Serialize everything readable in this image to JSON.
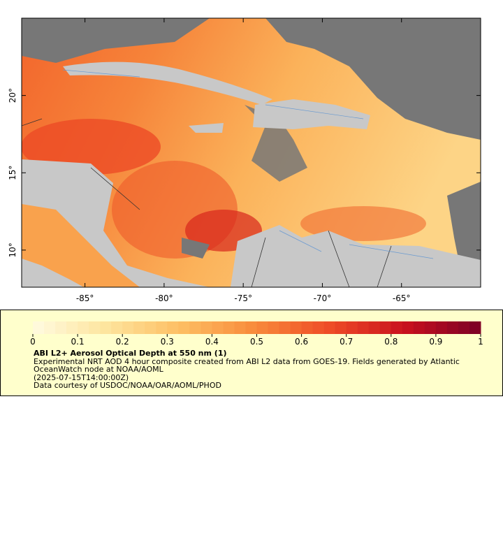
{
  "chart_data": {
    "type": "map",
    "xlim": [
      -89,
      -60
    ],
    "ylim": [
      7.6,
      25
    ],
    "xticks": [
      {
        "value": -85,
        "label": "-85°"
      },
      {
        "value": -80,
        "label": "-80°"
      },
      {
        "value": -75,
        "label": "-75°"
      },
      {
        "value": -70,
        "label": "-70°"
      },
      {
        "value": -65,
        "label": "-65°"
      }
    ],
    "yticks": [
      {
        "value": 10,
        "label": "10°"
      },
      {
        "value": 15,
        "label": "15°"
      },
      {
        "value": 20,
        "label": "20°"
      }
    ],
    "colorbar": {
      "clim": [
        0,
        1
      ],
      "ticks": [
        0,
        0.1,
        0.2,
        0.3,
        0.4,
        0.5,
        0.6,
        0.7,
        0.8,
        0.9,
        1
      ],
      "colors": [
        "#fffbe0",
        "#fde49c",
        "#fdbd62",
        "#f8893a",
        "#ee4a26",
        "#c8101e",
        "#7a0026"
      ]
    },
    "title": "ABI L2+ Aerosol Optical Depth at 550 nm (1)",
    "description": "Experimental NRT AOD 4 hour composite created from ABI L2 data from GOES-19. Fields generated by Atlantic OceanWatch node at NOAA/AOML",
    "time": "(2025-07-15T14:00:00Z)",
    "credit": "Data courtesy of USDOC/NOAA/OAR/AOML/PHOD"
  }
}
